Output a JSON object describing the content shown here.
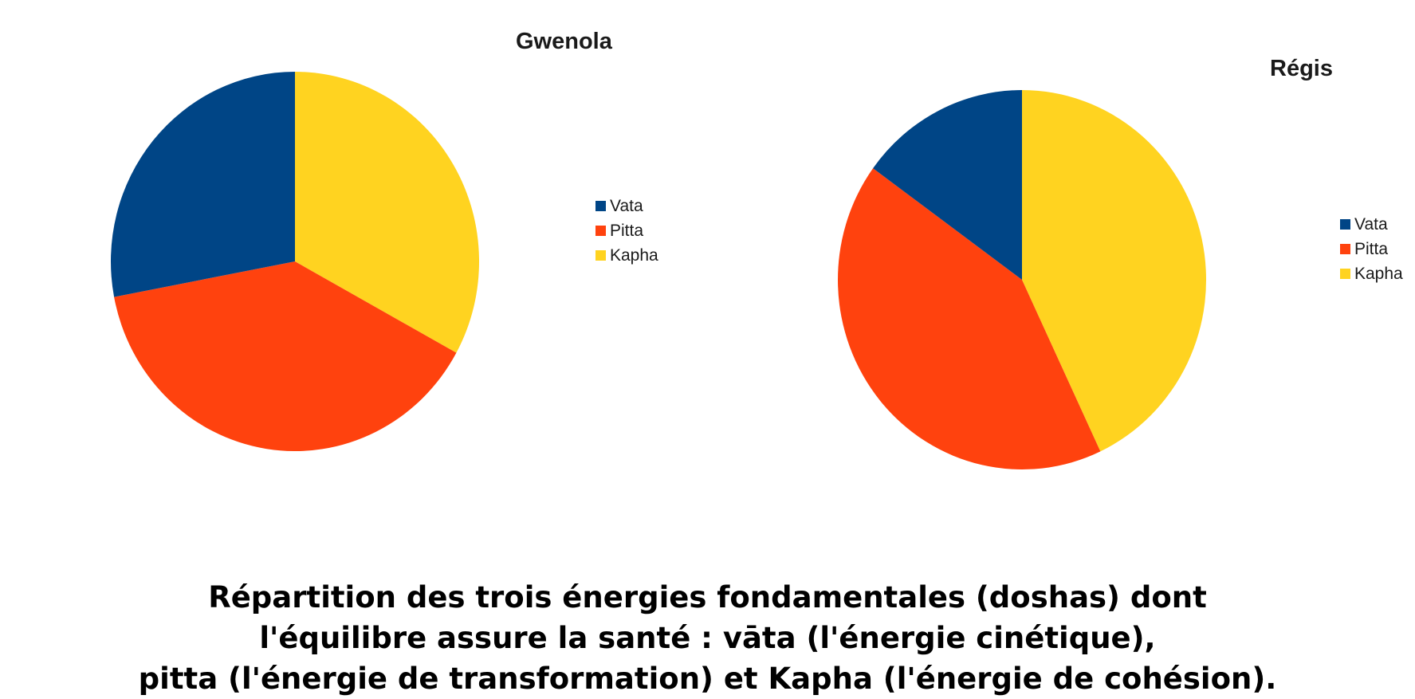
{
  "colors": {
    "Vata": "#004586",
    "Pitta": "#ff420e",
    "Kapha": "#ffd320"
  },
  "chart_data": [
    {
      "type": "pie",
      "title": "Gwenola",
      "legend": "right",
      "categories": [
        "Vata",
        "Pitta",
        "Kapha"
      ],
      "values": [
        28,
        39,
        33
      ]
    },
    {
      "type": "pie",
      "title": "Régis",
      "legend": "right",
      "categories": [
        "Vata",
        "Pitta",
        "Kapha"
      ],
      "values": [
        15,
        42,
        43
      ]
    }
  ],
  "caption": {
    "lines": [
      "Répartition des trois énergies fondamentales (doshas) dont",
      "l'équilibre assure la santé : vāta (l'énergie cinétique),",
      "pitta (l'énergie de transformation) et Kapha (l'énergie de cohésion)."
    ]
  }
}
